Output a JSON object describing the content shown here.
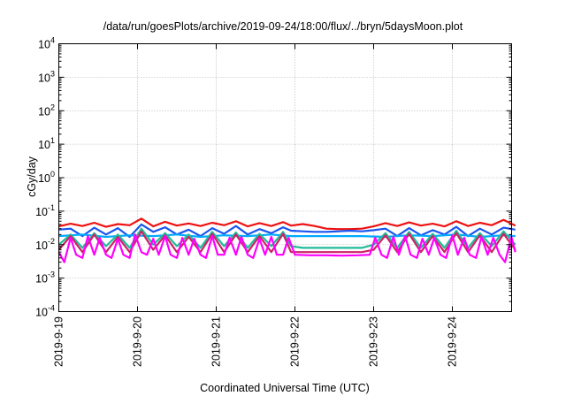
{
  "chart_data": {
    "type": "line",
    "title": "/data/run/goesPlots/archive/2019-09-24/18:00/flux/../bryn/5daysMoon.plot",
    "xlabel": "Coordinated Universal Time (UTC)",
    "ylabel": "cGy/day",
    "y_scale": "log",
    "ylim_exponents": [
      -4,
      4
    ],
    "y_ticks": [
      {
        "base": "10",
        "exp": "-4"
      },
      {
        "base": "10",
        "exp": "-3"
      },
      {
        "base": "10",
        "exp": "-2"
      },
      {
        "base": "10",
        "exp": "-1"
      },
      {
        "base": "10",
        "exp": "0"
      },
      {
        "base": "10",
        "exp": "1"
      },
      {
        "base": "10",
        "exp": "2"
      },
      {
        "base": "10",
        "exp": "3"
      },
      {
        "base": "10",
        "exp": "4"
      }
    ],
    "x_ticks": [
      "2019-9-19",
      "2019-9-20",
      "2019-9-21",
      "2019-9-22",
      "2019-9-23",
      "2019-9-24"
    ],
    "xlim_days": [
      0,
      5.8
    ],
    "grid": true,
    "colors": [
      "#ee1111",
      "#1a55ee",
      "#00aaff",
      "#22bb99",
      "#cc2266",
      "#ff00ff"
    ],
    "series": [
      {
        "color": "#ee1111",
        "x": [
          0,
          0.15,
          0.3,
          0.45,
          0.6,
          0.75,
          0.9,
          1.05,
          1.2,
          1.35,
          1.5,
          1.65,
          1.8,
          1.95,
          2.1,
          2.25,
          2.4,
          2.55,
          2.7,
          2.85,
          2.95,
          3.1,
          3.25,
          3.4,
          3.55,
          3.7,
          3.85,
          4.0,
          4.15,
          4.3,
          4.45,
          4.6,
          4.75,
          4.9,
          5.05,
          5.2,
          5.35,
          5.5,
          5.65,
          5.8
        ],
        "y": [
          0.035,
          0.042,
          0.036,
          0.045,
          0.034,
          0.041,
          0.038,
          0.06,
          0.035,
          0.048,
          0.037,
          0.043,
          0.036,
          0.045,
          0.038,
          0.05,
          0.035,
          0.044,
          0.036,
          0.047,
          0.037,
          0.041,
          0.036,
          0.03,
          0.029,
          0.029,
          0.03,
          0.035,
          0.044,
          0.036,
          0.046,
          0.037,
          0.042,
          0.035,
          0.05,
          0.036,
          0.045,
          0.038,
          0.055,
          0.037
        ]
      },
      {
        "color": "#1a55ee",
        "x": [
          0,
          0.15,
          0.3,
          0.45,
          0.6,
          0.75,
          0.9,
          1.05,
          1.2,
          1.35,
          1.5,
          1.65,
          1.8,
          1.95,
          2.1,
          2.25,
          2.4,
          2.55,
          2.7,
          2.85,
          2.95,
          3.1,
          3.25,
          3.4,
          3.55,
          3.7,
          3.85,
          4.0,
          4.15,
          4.3,
          4.45,
          4.6,
          4.75,
          4.9,
          5.05,
          5.2,
          5.35,
          5.5,
          5.65,
          5.8
        ],
        "y": [
          0.028,
          0.03,
          0.018,
          0.032,
          0.02,
          0.031,
          0.017,
          0.04,
          0.024,
          0.033,
          0.02,
          0.028,
          0.018,
          0.031,
          0.021,
          0.036,
          0.02,
          0.029,
          0.022,
          0.033,
          0.026,
          0.025,
          0.024,
          0.024,
          0.025,
          0.026,
          0.025,
          0.027,
          0.03,
          0.018,
          0.031,
          0.019,
          0.027,
          0.02,
          0.034,
          0.018,
          0.03,
          0.02,
          0.032,
          0.028
        ]
      },
      {
        "color": "#00aaff",
        "x": [
          0,
          0.3,
          0.6,
          0.9,
          1.2,
          1.5,
          1.8,
          2.1,
          2.4,
          2.7,
          2.95,
          3.25,
          3.55,
          3.85,
          4.15,
          4.45,
          4.75,
          5.05,
          5.35,
          5.65,
          5.8
        ],
        "y": [
          0.018,
          0.02,
          0.017,
          0.019,
          0.018,
          0.02,
          0.017,
          0.019,
          0.018,
          0.02,
          0.018,
          0.018,
          0.018,
          0.018,
          0.017,
          0.019,
          0.018,
          0.02,
          0.017,
          0.019,
          0.018
        ]
      },
      {
        "color": "#22bb99",
        "x": [
          0,
          0.15,
          0.3,
          0.45,
          0.6,
          0.75,
          0.9,
          1.05,
          1.2,
          1.35,
          1.5,
          1.65,
          1.8,
          1.95,
          2.1,
          2.25,
          2.4,
          2.55,
          2.7,
          2.85,
          2.95,
          3.1,
          3.25,
          3.4,
          3.55,
          3.7,
          3.85,
          4.0,
          4.15,
          4.3,
          4.45,
          4.6,
          4.75,
          4.9,
          5.05,
          5.2,
          5.35,
          5.5,
          5.65,
          5.8
        ],
        "y": [
          0.01,
          0.02,
          0.008,
          0.022,
          0.009,
          0.02,
          0.008,
          0.03,
          0.01,
          0.022,
          0.009,
          0.02,
          0.008,
          0.024,
          0.009,
          0.023,
          0.008,
          0.021,
          0.009,
          0.024,
          0.009,
          0.008,
          0.008,
          0.008,
          0.008,
          0.008,
          0.008,
          0.01,
          0.022,
          0.008,
          0.024,
          0.008,
          0.021,
          0.008,
          0.026,
          0.008,
          0.022,
          0.009,
          0.025,
          0.01
        ]
      },
      {
        "color": "#cc2266",
        "x": [
          0,
          0.15,
          0.3,
          0.45,
          0.6,
          0.75,
          0.9,
          1.05,
          1.2,
          1.35,
          1.5,
          1.65,
          1.8,
          1.95,
          2.1,
          2.25,
          2.4,
          2.55,
          2.7,
          2.85,
          2.95,
          3.1,
          3.25,
          3.4,
          3.55,
          3.7,
          3.85,
          4.0,
          4.15,
          4.3,
          4.45,
          4.6,
          4.75,
          4.9,
          5.05,
          5.2,
          5.35,
          5.5,
          5.65,
          5.8
        ],
        "y": [
          0.007,
          0.018,
          0.006,
          0.02,
          0.006,
          0.017,
          0.006,
          0.025,
          0.007,
          0.019,
          0.006,
          0.017,
          0.006,
          0.021,
          0.006,
          0.02,
          0.006,
          0.018,
          0.006,
          0.021,
          0.006,
          0.006,
          0.006,
          0.006,
          0.006,
          0.006,
          0.006,
          0.007,
          0.019,
          0.006,
          0.021,
          0.006,
          0.018,
          0.006,
          0.022,
          0.006,
          0.019,
          0.006,
          0.021,
          0.007
        ]
      },
      {
        "color": "#ff00ff",
        "x": [
          0,
          0.07,
          0.15,
          0.22,
          0.3,
          0.37,
          0.45,
          0.52,
          0.6,
          0.67,
          0.75,
          0.82,
          0.9,
          0.97,
          1.05,
          1.12,
          1.2,
          1.27,
          1.35,
          1.42,
          1.5,
          1.57,
          1.65,
          1.72,
          1.8,
          1.87,
          1.95,
          2.02,
          2.1,
          2.17,
          2.25,
          2.32,
          2.4,
          2.47,
          2.55,
          2.62,
          2.7,
          2.77,
          2.85,
          2.92,
          3.0,
          3.2,
          3.4,
          3.6,
          3.8,
          3.95,
          4.02,
          4.1,
          4.17,
          4.25,
          4.32,
          4.4,
          4.47,
          4.55,
          4.62,
          4.7,
          4.77,
          4.85,
          4.92,
          5.0,
          5.07,
          5.15,
          5.22,
          5.3,
          5.37,
          5.45,
          5.52,
          5.6,
          5.67,
          5.75,
          5.8
        ],
        "y": [
          0.006,
          0.003,
          0.016,
          0.005,
          0.004,
          0.018,
          0.005,
          0.016,
          0.005,
          0.004,
          0.015,
          0.005,
          0.004,
          0.02,
          0.006,
          0.005,
          0.015,
          0.005,
          0.018,
          0.005,
          0.004,
          0.016,
          0.005,
          0.015,
          0.005,
          0.004,
          0.018,
          0.005,
          0.005,
          0.016,
          0.005,
          0.017,
          0.005,
          0.004,
          0.015,
          0.005,
          0.017,
          0.005,
          0.005,
          0.016,
          0.005,
          0.0048,
          0.0048,
          0.0047,
          0.0048,
          0.005,
          0.016,
          0.005,
          0.004,
          0.017,
          0.005,
          0.018,
          0.005,
          0.004,
          0.015,
          0.005,
          0.016,
          0.005,
          0.004,
          0.019,
          0.005,
          0.016,
          0.005,
          0.004,
          0.017,
          0.005,
          0.016,
          0.005,
          0.003,
          0.017,
          0.006
        ]
      }
    ]
  }
}
